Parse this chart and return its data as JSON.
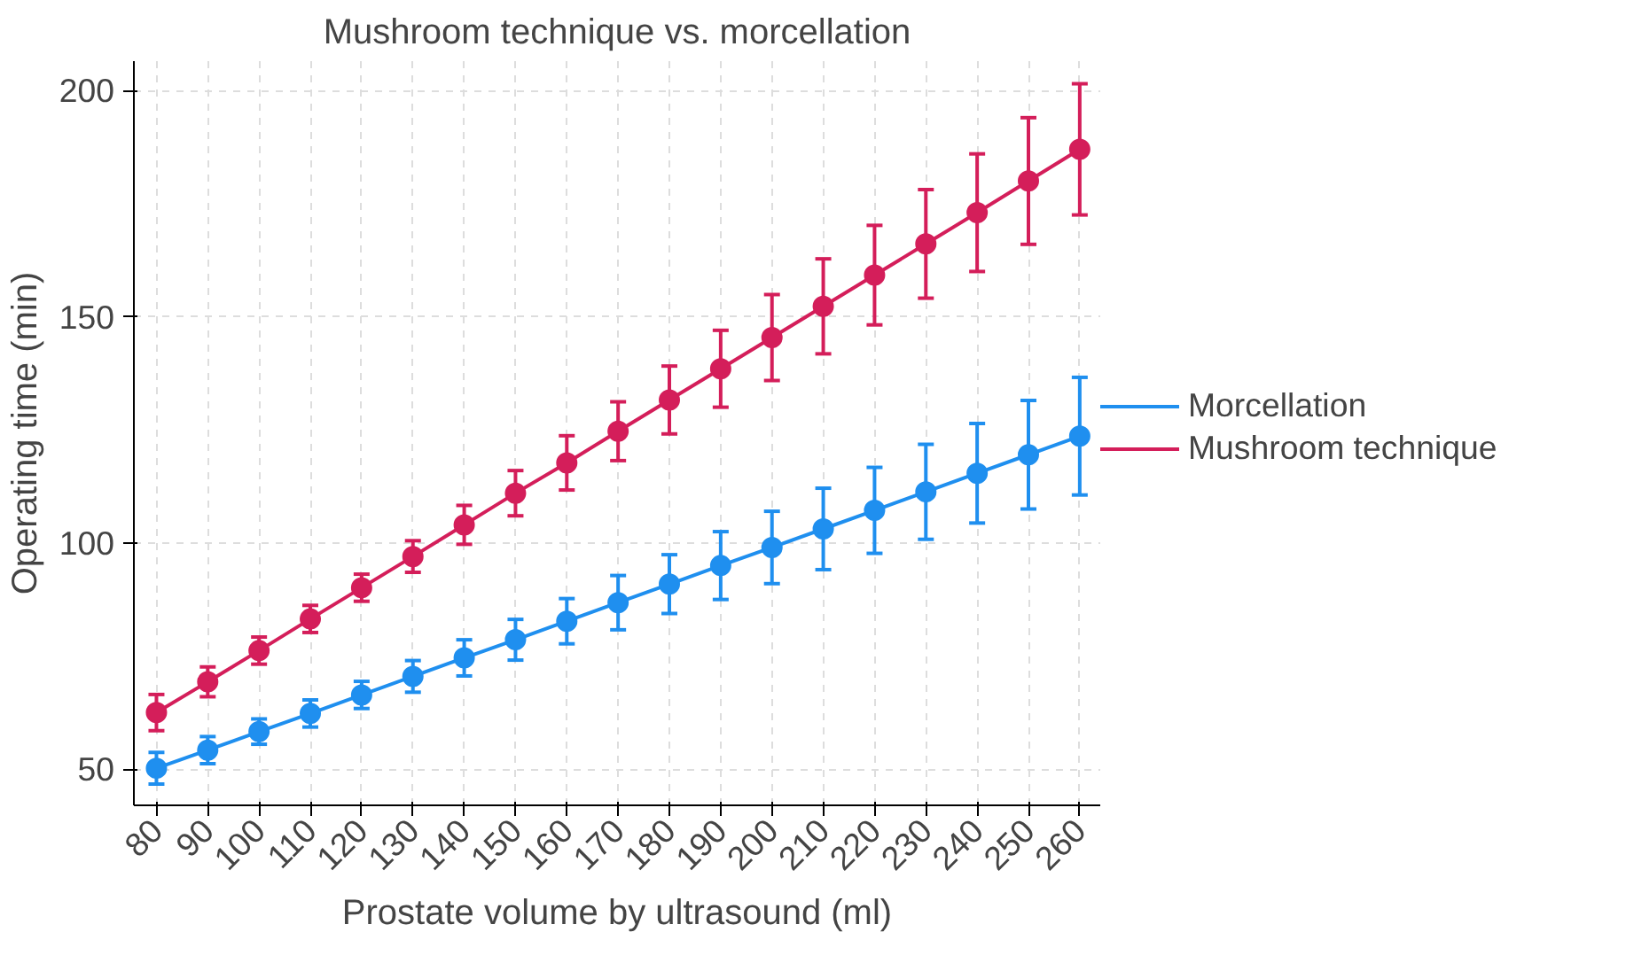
{
  "chart_data": {
    "type": "line",
    "title": "Mushroom technique vs. morcellation",
    "xlabel": "Prostate volume by ultrasound (ml)",
    "ylabel": "Operating time (min)",
    "x": [
      80,
      90,
      100,
      110,
      120,
      130,
      140,
      150,
      160,
      170,
      180,
      190,
      200,
      210,
      220,
      230,
      240,
      250,
      260
    ],
    "series": [
      {
        "name": "Morcellation",
        "color": "#1f8fef",
        "values": [
          50.2,
          54.2,
          58.3,
          62.3,
          66.4,
          70.5,
          74.6,
          78.6,
          82.7,
          86.8,
          90.9,
          95,
          99,
          103.1,
          107.2,
          111.3,
          115.4,
          119.5,
          123.6
        ],
        "errors": [
          3.5,
          3,
          2.8,
          3,
          3,
          3.5,
          4,
          4.5,
          5,
          6,
          6.5,
          7.5,
          8,
          9,
          9.5,
          10.5,
          11,
          12,
          13
        ]
      },
      {
        "name": "Mushroom technique",
        "color": "#d41e5a",
        "values": [
          62.5,
          69.3,
          76.2,
          83.2,
          90.1,
          97,
          104,
          111,
          117.7,
          124.7,
          131.6,
          138.5,
          145.4,
          152.3,
          159.2,
          166.1,
          173,
          180,
          187
        ],
        "errors": [
          4,
          3.3,
          3,
          3,
          3,
          3.5,
          4.3,
          5,
          6,
          6.5,
          7.5,
          8.5,
          9.5,
          10.5,
          11,
          12,
          13,
          14,
          14.5
        ]
      }
    ],
    "xlim": [
      75.6,
      264
    ],
    "ylim": [
      42,
      206.5
    ],
    "xticks": [
      80,
      90,
      100,
      110,
      120,
      130,
      140,
      150,
      160,
      170,
      180,
      190,
      200,
      210,
      220,
      230,
      240,
      250,
      260
    ],
    "yticks": [
      50,
      100,
      150,
      200
    ],
    "grid": true,
    "legend": "right",
    "marker": "circle",
    "line_style": "solid"
  }
}
